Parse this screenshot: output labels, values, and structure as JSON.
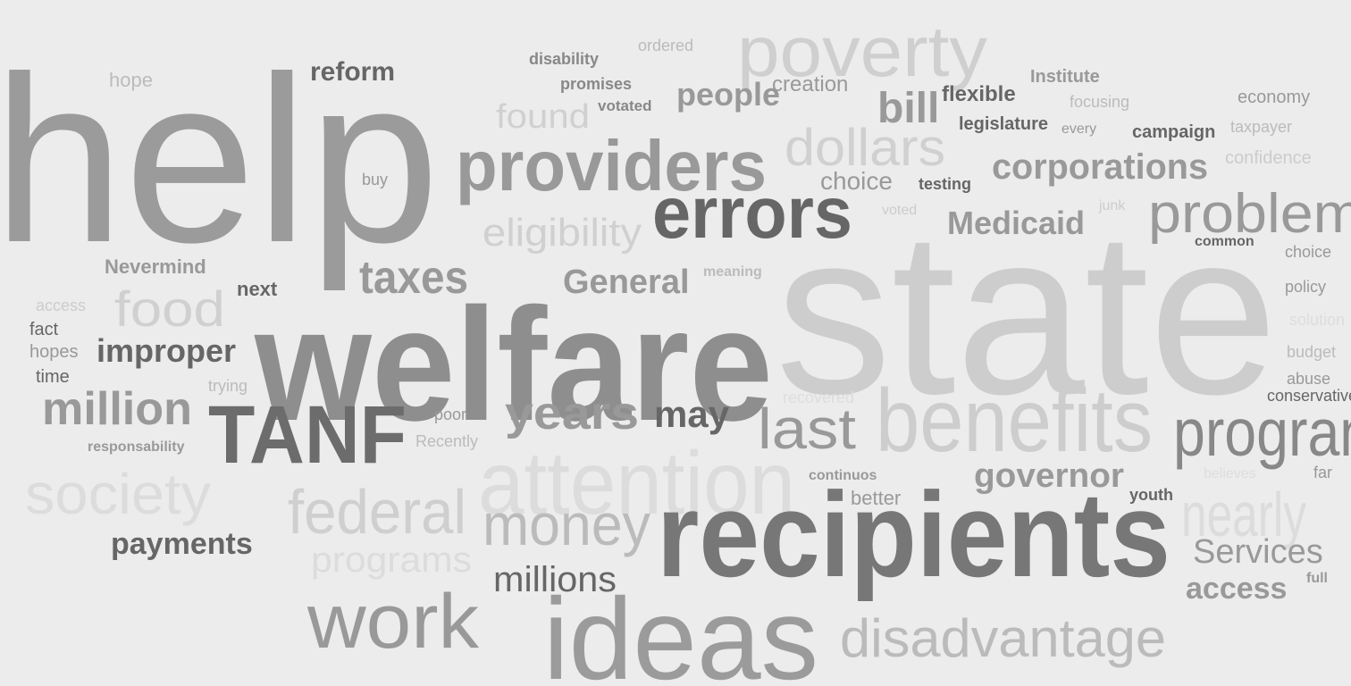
{
  "words": [
    "help",
    "hope",
    "reform",
    "disability",
    "ordered",
    "poverty",
    "promises",
    "votated",
    "people",
    "creation",
    "found",
    "bill",
    "flexible",
    "Institute",
    "focusing",
    "economy",
    "legislature",
    "every",
    "campaign",
    "taxpayer",
    "providers",
    "dollars",
    "corporations",
    "confidence",
    "buy",
    "choice",
    "testing",
    "errors",
    "eligibility",
    "voted",
    "Medicaid",
    "junk",
    "problem",
    "common",
    "choice",
    "Nevermind",
    "taxes",
    "General",
    "meaning",
    "next",
    "food",
    "access",
    "policy",
    "state",
    "fact",
    "welfare",
    "hopes",
    "improper",
    "solution",
    "time",
    "trying",
    "budget",
    "abuse",
    "conservative",
    "million",
    "TANF",
    "recovered",
    "poor",
    "years",
    "may",
    "last",
    "benefits",
    "program",
    "responsability",
    "Recently",
    "attention",
    "society",
    "continuos",
    "governor",
    "believes",
    "far",
    "better",
    "youth",
    "federal",
    "nearly",
    "money",
    "recipients",
    "payments",
    "Services",
    "programs",
    "full",
    "millions",
    "access",
    "work",
    "ideas",
    "disadvantage"
  ]
}
